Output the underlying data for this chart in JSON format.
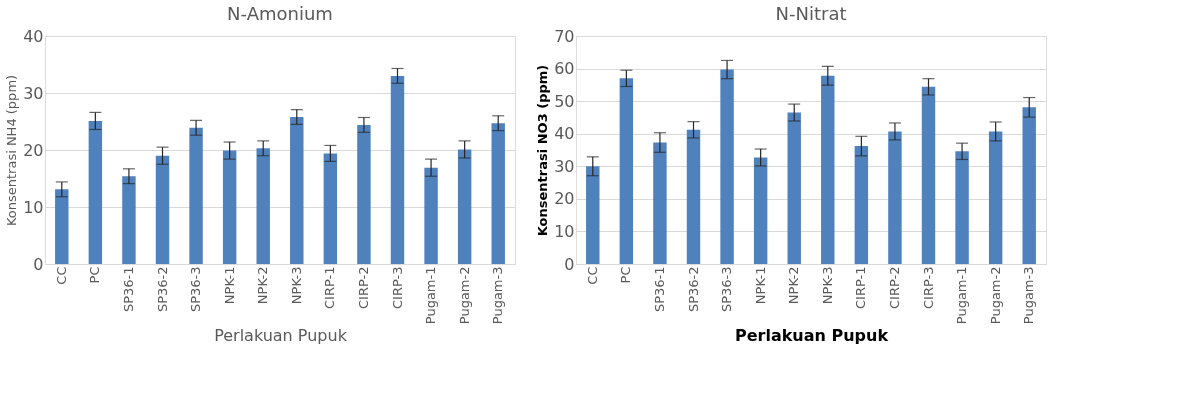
{
  "chart_data": [
    {
      "type": "bar",
      "title": "N-Amonium",
      "xlabel": "Perlakuan Pupuk",
      "ylabel": "Konsentrasi NH4 (ppm)",
      "categories": [
        "CC",
        "PC",
        "SP36-1",
        "SP36-2",
        "SP36-3",
        "NPK-1",
        "NPK-2",
        "NPK-3",
        "CIRP-1",
        "CIRP-2",
        "CIRP-3",
        "Pugam-1",
        "Pugam-2",
        "Pugam-3"
      ],
      "series": [
        {
          "color": "#4f81bd",
          "values": [
            13.1,
            25.1,
            15.4,
            19.0,
            23.9,
            19.9,
            20.3,
            25.8,
            19.4,
            24.4,
            33.0,
            16.9,
            20.1,
            24.7
          ],
          "errors": [
            1.3,
            1.5,
            1.3,
            1.5,
            1.3,
            1.5,
            1.3,
            1.3,
            1.4,
            1.3,
            1.3,
            1.5,
            1.5,
            1.3
          ]
        }
      ],
      "ylim": [
        0,
        40
      ],
      "yticks": [
        0,
        10,
        20,
        30,
        40
      ],
      "grid": "y"
    },
    {
      "type": "bar",
      "title": "N-Nitrat",
      "xlabel": "Perlakuan Pupuk",
      "ylabel": "Konsentrasi NO3 (ppm)",
      "categories": [
        "CC",
        "PC",
        "SP36-1",
        "SP36-2",
        "SP36-3",
        "NPK-1",
        "NPK-2",
        "NPK-3",
        "CIRP-1",
        "CIRP-2",
        "CIRP-3",
        "Pugam-1",
        "Pugam-2",
        "Pugam-3"
      ],
      "series": [
        {
          "color": "#4f81bd",
          "values": [
            30.0,
            57.0,
            37.3,
            41.2,
            59.7,
            32.7,
            46.5,
            57.8,
            36.2,
            40.7,
            54.4,
            34.6,
            40.7,
            48.1
          ],
          "errors": [
            2.9,
            2.5,
            3.0,
            2.5,
            2.8,
            2.6,
            2.6,
            2.9,
            3.0,
            2.6,
            2.5,
            2.5,
            2.9,
            3.0
          ]
        }
      ],
      "ylim": [
        0,
        70
      ],
      "yticks": [
        0,
        10,
        20,
        30,
        40,
        50,
        60,
        70
      ],
      "grid": "y"
    }
  ]
}
